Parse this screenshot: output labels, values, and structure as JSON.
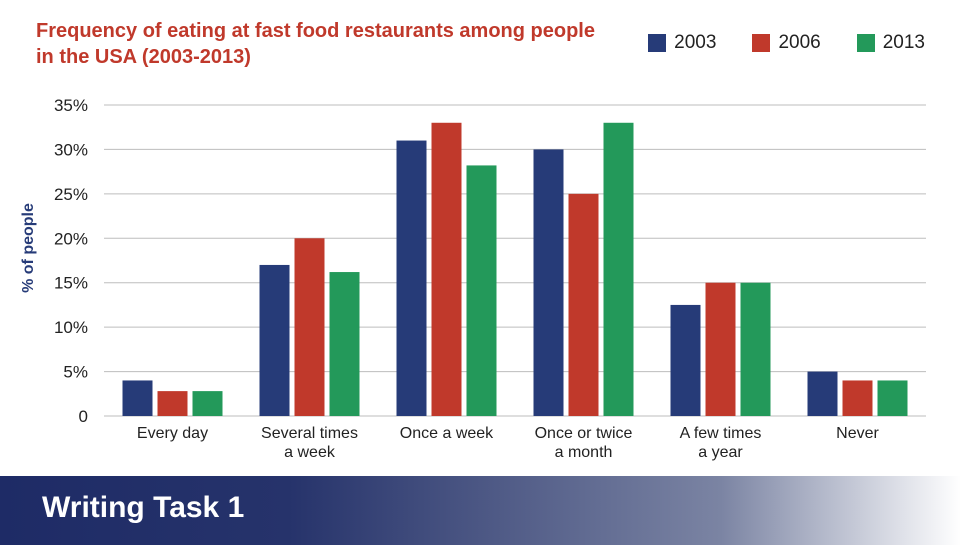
{
  "chart_data": {
    "type": "bar",
    "title": "Frequency of eating at fast food restaurants among people in the USA (2003-2013)",
    "ylabel": "% of people",
    "xlabel": "",
    "ylim": [
      0,
      35
    ],
    "yticks": [
      "0",
      "5%",
      "10%",
      "15%",
      "20%",
      "25%",
      "30%",
      "35%"
    ],
    "ytick_values": [
      0,
      5,
      10,
      15,
      20,
      25,
      30,
      35
    ],
    "grid": true,
    "legend_position": "top-right",
    "categories": [
      [
        "Every day"
      ],
      [
        "Several times",
        "a week"
      ],
      [
        "Once a week"
      ],
      [
        "Once or twice",
        "a month"
      ],
      [
        "A few times",
        "a year"
      ],
      [
        "Never"
      ]
    ],
    "series": [
      {
        "name": "2003",
        "color": "#263b78",
        "values": [
          4,
          17,
          31,
          30,
          12.5,
          5
        ]
      },
      {
        "name": "2006",
        "color": "#c0392b",
        "values": [
          2.8,
          20,
          33,
          25,
          15,
          4
        ]
      },
      {
        "name": "2013",
        "color": "#23995a",
        "values": [
          2.8,
          16.2,
          28.2,
          33,
          15,
          4
        ]
      }
    ]
  },
  "footer": {
    "text": "Writing Task 1"
  }
}
